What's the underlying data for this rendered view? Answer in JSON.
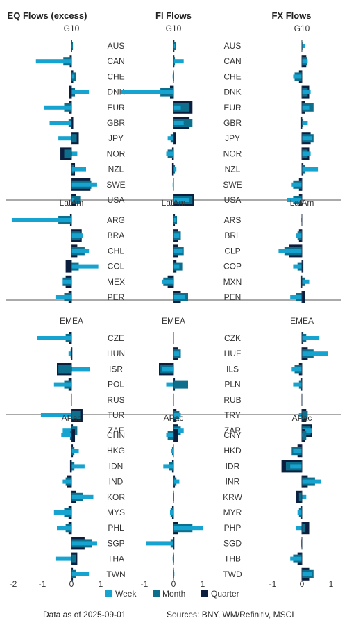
{
  "chart_data": {
    "type": "bar",
    "orientation": "horizontal",
    "series": [
      {
        "name": "Week",
        "color": "#16a3cf"
      },
      {
        "name": "Month",
        "color": "#0e6f8c"
      },
      {
        "name": "Quarter",
        "color": "#0b1e3d"
      }
    ],
    "xlim": [
      -2,
      1
    ],
    "xticks": [
      "-2",
      "-1",
      "0",
      "1"
    ],
    "grid": false,
    "legend_position": "bottom",
    "panels": [
      {
        "title": "EQ Flows (excess)",
        "xlim": [
          -2,
          1
        ],
        "xticks": [
          -2,
          -1,
          0,
          1
        ],
        "groups": [
          {
            "label": "G10",
            "rows": [
              {
                "category": "AUS",
                "week": 0.03,
                "month": 0.05,
                "quarter": 0.02
              },
              {
                "category": "CAN",
                "week": -1.22,
                "month": -0.28,
                "quarter": -0.06
              },
              {
                "category": "CHE",
                "week": 0.1,
                "month": 0.15,
                "quarter": 0.06
              },
              {
                "category": "DNK",
                "week": 0.6,
                "month": 0.12,
                "quarter": -0.08
              },
              {
                "category": "EUR",
                "week": -0.95,
                "month": -0.25,
                "quarter": -0.08
              },
              {
                "category": "GBR",
                "week": -0.75,
                "month": -0.1,
                "quarter": 0.06
              },
              {
                "category": "JPY",
                "week": -0.45,
                "month": 0.18,
                "quarter": 0.25
              },
              {
                "category": "NOR",
                "week": 0.2,
                "month": -0.25,
                "quarter": -0.38
              },
              {
                "category": "NZL",
                "week": 0.5,
                "month": 0.1,
                "quarter": 0.12
              },
              {
                "category": "SWE",
                "week": 0.88,
                "month": 0.68,
                "quarter": 0.65
              },
              {
                "category": "USA",
                "week": 0.1,
                "month": 0.3,
                "quarter": 0.15
              }
            ]
          },
          {
            "label": "LatAm",
            "rows": [
              {
                "category": "ARG",
                "week": -2.05,
                "month": -0.45,
                "quarter": -0.05
              },
              {
                "category": "BRA",
                "week": 0.4,
                "month": 0.3,
                "quarter": 0.35
              },
              {
                "category": "CHL",
                "week": 0.6,
                "month": 0.45,
                "quarter": 0.2
              },
              {
                "category": "COL",
                "week": 0.92,
                "month": 0.25,
                "quarter": -0.2
              },
              {
                "category": "MEX",
                "week": -0.3,
                "month": -0.3,
                "quarter": -0.2
              },
              {
                "category": "PER",
                "week": -0.55,
                "month": -0.25,
                "quarter": -0.1
              }
            ]
          },
          {
            "label": "EMEA",
            "rows": [
              {
                "category": "CZE",
                "week": -1.18,
                "month": -0.2,
                "quarter": -0.08
              },
              {
                "category": "HUN",
                "week": -0.1,
                "month": -0.03,
                "quarter": 0.03
              },
              {
                "category": "ISR",
                "week": 0.62,
                "month": -0.45,
                "quarter": -0.5
              },
              {
                "category": "POL",
                "week": -0.6,
                "month": -0.25,
                "quarter": -0.1
              },
              {
                "category": "RUS",
                "week": 0.0,
                "month": 0.0,
                "quarter": 0.0
              },
              {
                "category": "TUR",
                "week": -1.05,
                "month": 0.3,
                "quarter": 0.38
              },
              {
                "category": "ZAF",
                "week": -0.3,
                "month": 0.2,
                "quarter": 0.05
              }
            ]
          },
          {
            "label": "APac",
            "rows": [
              {
                "category": "CHN",
                "week": -0.35,
                "month": -0.05,
                "quarter": 0.12
              },
              {
                "category": "HKG",
                "week": 0.25,
                "month": 0.1,
                "quarter": 0.05
              },
              {
                "category": "IDN",
                "week": 0.45,
                "month": 0.1,
                "quarter": -0.05
              },
              {
                "category": "IND",
                "week": -0.3,
                "month": -0.2,
                "quarter": -0.15
              },
              {
                "category": "KOR",
                "week": 0.75,
                "month": 0.4,
                "quarter": 0.15
              },
              {
                "category": "MYS",
                "week": -0.6,
                "month": -0.25,
                "quarter": -0.1
              },
              {
                "category": "PHL",
                "week": -0.5,
                "month": -0.2,
                "quarter": -0.1
              },
              {
                "category": "SGP",
                "week": 0.88,
                "month": 0.7,
                "quarter": 0.45
              },
              {
                "category": "THA",
                "week": -0.55,
                "month": 0.15,
                "quarter": 0.2
              },
              {
                "category": "TWN",
                "week": 0.6,
                "month": 0.15,
                "quarter": 0.05
              }
            ]
          }
        ]
      },
      {
        "title": "FI Flows",
        "xlim": [
          -2,
          1
        ],
        "xticks": [
          -1,
          0,
          1
        ],
        "groups": [
          {
            "label": "G10",
            "rows": [
              {
                "category": "AUS",
                "week": 0.05,
                "month": 0.08,
                "quarter": 0.03
              },
              {
                "category": "CAN",
                "week": 0.35,
                "month": 0.05,
                "quarter": 0.03
              },
              {
                "category": "CHE",
                "week": -0.03,
                "month": 0.02,
                "quarter": 0.0
              },
              {
                "category": "DNK",
                "week": -1.8,
                "month": -0.45,
                "quarter": -0.12
              },
              {
                "category": "EUR",
                "week": 0.25,
                "month": 0.55,
                "quarter": 0.65
              },
              {
                "category": "GBR",
                "week": 0.35,
                "month": 0.65,
                "quarter": 0.55
              },
              {
                "category": "JPY",
                "week": -0.2,
                "month": -0.1,
                "quarter": 0.08
              },
              {
                "category": "NOR",
                "week": -0.25,
                "month": -0.2,
                "quarter": -0.05
              },
              {
                "category": "NZL",
                "week": 0.1,
                "month": 0.05,
                "quarter": -0.05
              },
              {
                "category": "SWE",
                "week": -0.03,
                "month": -0.02,
                "quarter": 0.0
              },
              {
                "category": "USA",
                "week": 0.55,
                "month": 0.65,
                "quarter": 0.7
              }
            ]
          },
          {
            "label": "LatAm",
            "rows": [
              {
                "category": "ARS",
                "week": 0.1,
                "month": 0.12,
                "quarter": 0.05
              },
              {
                "category": "BRL",
                "week": 0.2,
                "month": 0.25,
                "quarter": 0.15
              },
              {
                "category": "CLP",
                "week": 0.3,
                "month": 0.35,
                "quarter": 0.15
              },
              {
                "category": "COP",
                "week": 0.2,
                "month": 0.3,
                "quarter": 0.1
              },
              {
                "category": "MXN",
                "week": -0.4,
                "month": -0.35,
                "quarter": -0.2
              },
              {
                "category": "PEN",
                "week": 0.4,
                "month": 0.5,
                "quarter": 0.25
              }
            ]
          },
          {
            "label": "EMEA",
            "rows": [
              {
                "category": "CZK",
                "week": 0.0,
                "month": 0.0,
                "quarter": 0.0
              },
              {
                "category": "HUF",
                "week": 0.2,
                "month": 0.25,
                "quarter": 0.15
              },
              {
                "category": "ILS",
                "week": -0.4,
                "month": -0.45,
                "quarter": -0.5
              },
              {
                "category": "PLN",
                "week": -0.25,
                "month": 0.5,
                "quarter": 0.05
              },
              {
                "category": "RUB",
                "week": 0.0,
                "month": 0.0,
                "quarter": 0.0
              },
              {
                "category": "TRY",
                "week": 0.25,
                "month": 0.2,
                "quarter": 0.1
              },
              {
                "category": "ZAR",
                "week": 0.35,
                "month": 0.25,
                "quarter": 0.15
              }
            ]
          },
          {
            "label": "APac",
            "rows": [
              {
                "category": "CNY",
                "week": -0.25,
                "month": -0.2,
                "quarter": 0.15
              },
              {
                "category": "HKD",
                "week": -0.08,
                "month": -0.05,
                "quarter": 0.0
              },
              {
                "category": "IDR",
                "week": -0.35,
                "month": -0.15,
                "quarter": -0.05
              },
              {
                "category": "INR",
                "week": 0.2,
                "month": 0.1,
                "quarter": 0.05
              },
              {
                "category": "KRW",
                "week": 0.02,
                "month": 0.02,
                "quarter": 0.0
              },
              {
                "category": "MYR",
                "week": -0.12,
                "month": -0.1,
                "quarter": -0.05
              },
              {
                "category": "PHP",
                "week": 1.0,
                "month": 0.65,
                "quarter": 0.15
              },
              {
                "category": "SGD",
                "week": -0.95,
                "month": -0.1,
                "quarter": 0.03
              },
              {
                "category": "THB",
                "week": -0.03,
                "month": 0.02,
                "quarter": 0.0
              },
              {
                "category": "TWD",
                "week": 0.03,
                "month": 0.02,
                "quarter": 0.0
              }
            ]
          }
        ]
      },
      {
        "title": "FX Flows",
        "xlim": [
          -2,
          1
        ],
        "xticks": [
          -1,
          0,
          1
        ],
        "groups": [
          {
            "label": "G10",
            "rows": [
              {
                "category": "AUD",
                "week": 0.12,
                "month": 0.02,
                "quarter": 0.0
              },
              {
                "category": "CAD",
                "week": 0.2,
                "month": 0.18,
                "quarter": 0.15
              },
              {
                "category": "CHF",
                "week": -0.3,
                "month": -0.25,
                "quarter": -0.1
              },
              {
                "category": "DKK",
                "week": 0.3,
                "month": 0.2,
                "quarter": 0.25
              },
              {
                "category": "EUR",
                "week": 0.25,
                "month": 0.4,
                "quarter": 0.1
              },
              {
                "category": "GBP",
                "week": 0.2,
                "month": 0.05,
                "quarter": -0.05
              },
              {
                "category": "JPY",
                "week": 0.35,
                "month": 0.4,
                "quarter": 0.3
              },
              {
                "category": "NOK",
                "week": 0.3,
                "month": 0.2,
                "quarter": 0.25
              },
              {
                "category": "NZD",
                "week": 0.55,
                "month": 0.1,
                "quarter": 0.05
              },
              {
                "category": "SEK",
                "week": -0.35,
                "month": -0.3,
                "quarter": -0.1
              },
              {
                "category": "USD",
                "week": -0.5,
                "month": -0.3,
                "quarter": -0.1
              }
            ]
          },
          {
            "label": "LatAm",
            "rows": [
              {
                "category": "ARS",
                "week": -0.02,
                "month": -0.01,
                "quarter": 0.0
              },
              {
                "category": "BRL",
                "week": -0.2,
                "month": -0.15,
                "quarter": -0.1
              },
              {
                "category": "CLP",
                "week": -0.8,
                "month": -0.6,
                "quarter": -0.45
              },
              {
                "category": "COP",
                "week": -0.3,
                "month": -0.15,
                "quarter": 0.05
              },
              {
                "category": "MXN",
                "week": 0.25,
                "month": 0.1,
                "quarter": -0.05
              },
              {
                "category": "PEN",
                "week": -0.4,
                "month": -0.2,
                "quarter": 0.1
              }
            ]
          },
          {
            "label": "EMEA",
            "rows": [
              {
                "category": "CZK",
                "week": 0.6,
                "month": 0.15,
                "quarter": 0.05
              },
              {
                "category": "HUF",
                "week": 0.9,
                "month": 0.4,
                "quarter": 0.2
              },
              {
                "category": "ILS",
                "week": -0.35,
                "month": -0.25,
                "quarter": -0.1
              },
              {
                "category": "PLN",
                "week": -0.3,
                "month": -0.1,
                "quarter": -0.05
              },
              {
                "category": "RUB",
                "week": 0.0,
                "month": 0.0,
                "quarter": 0.0
              },
              {
                "category": "TRY",
                "week": -0.1,
                "month": 0.2,
                "quarter": 0.15
              },
              {
                "category": "ZAR",
                "week": 0.35,
                "month": 0.3,
                "quarter": 0.35
              }
            ]
          },
          {
            "label": "APac",
            "rows": [
              {
                "category": "CNY",
                "week": 0.05,
                "month": 0.15,
                "quarter": 0.12
              },
              {
                "category": "HKD",
                "week": -0.3,
                "month": -0.35,
                "quarter": -0.15
              },
              {
                "category": "IDR",
                "week": -0.4,
                "month": -0.55,
                "quarter": -0.7
              },
              {
                "category": "INR",
                "week": 0.65,
                "month": 0.45,
                "quarter": 0.2
              },
              {
                "category": "KRW",
                "week": 0.15,
                "month": -0.1,
                "quarter": -0.2
              },
              {
                "category": "MYR",
                "week": -0.15,
                "month": -0.1,
                "quarter": -0.05
              },
              {
                "category": "PHP",
                "week": -0.2,
                "month": 0.1,
                "quarter": 0.25
              },
              {
                "category": "SGD",
                "week": -0.03,
                "month": -0.02,
                "quarter": 0.0
              },
              {
                "category": "THB",
                "week": -0.4,
                "month": -0.3,
                "quarter": -0.15
              },
              {
                "category": "TWD",
                "week": 0.35,
                "month": 0.4,
                "quarter": 0.25
              }
            ]
          }
        ]
      }
    ]
  },
  "footer": {
    "date_text": "Data as of 2025-09-01",
    "sources_text": "Sources:  BNY, WM/Refinitiv, MSCI"
  }
}
